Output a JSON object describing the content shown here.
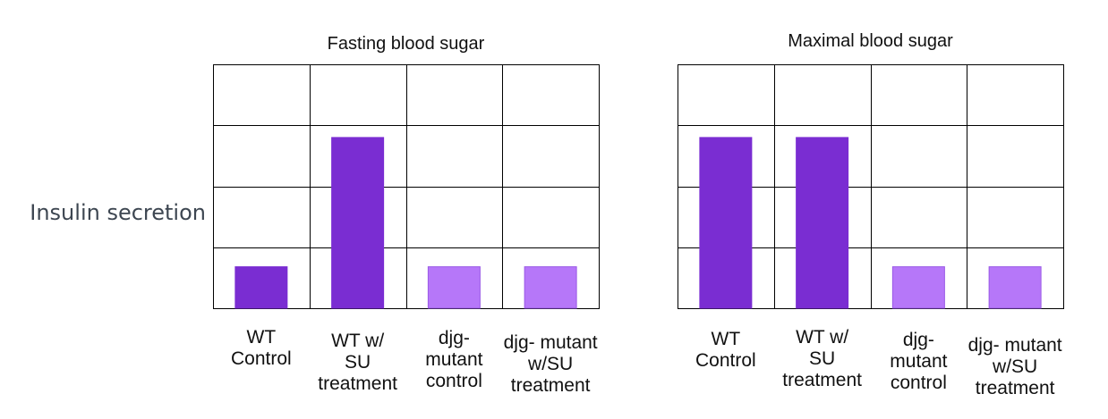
{
  "ylabel": "Insulin secretion",
  "colors": {
    "dark_bar": "#7a2dd2",
    "light_bar": "#b677f9",
    "grid": "#000000"
  },
  "chart_data": [
    {
      "type": "bar",
      "title": "Fasting blood sugar",
      "ylabel": "Insulin secretion",
      "xlabel": "",
      "ylim": [
        0,
        4
      ],
      "grid": true,
      "categories": [
        [
          "WT",
          "Control"
        ],
        [
          "WT w/",
          "SU",
          "treatment"
        ],
        [
          "djg-",
          "mutant",
          "control"
        ],
        [
          "djg- mutant",
          "w/SU",
          "treatment"
        ]
      ],
      "values": [
        0.68,
        2.8,
        0.68,
        0.68
      ],
      "bar_colors": [
        "#7a2dd2",
        "#7a2dd2",
        "#b677f9",
        "#b677f9"
      ]
    },
    {
      "type": "bar",
      "title": "Maximal blood sugar",
      "ylabel": "",
      "xlabel": "",
      "ylim": [
        0,
        4
      ],
      "grid": true,
      "categories": [
        [
          "WT",
          "Control"
        ],
        [
          "WT w/",
          "SU",
          "treatment"
        ],
        [
          "djg-",
          "mutant",
          "control"
        ],
        [
          "djg- mutant",
          "w/SU",
          "treatment"
        ]
      ],
      "values": [
        2.8,
        2.8,
        0.68,
        0.68
      ],
      "bar_colors": [
        "#7a2dd2",
        "#7a2dd2",
        "#b677f9",
        "#b677f9"
      ]
    }
  ]
}
